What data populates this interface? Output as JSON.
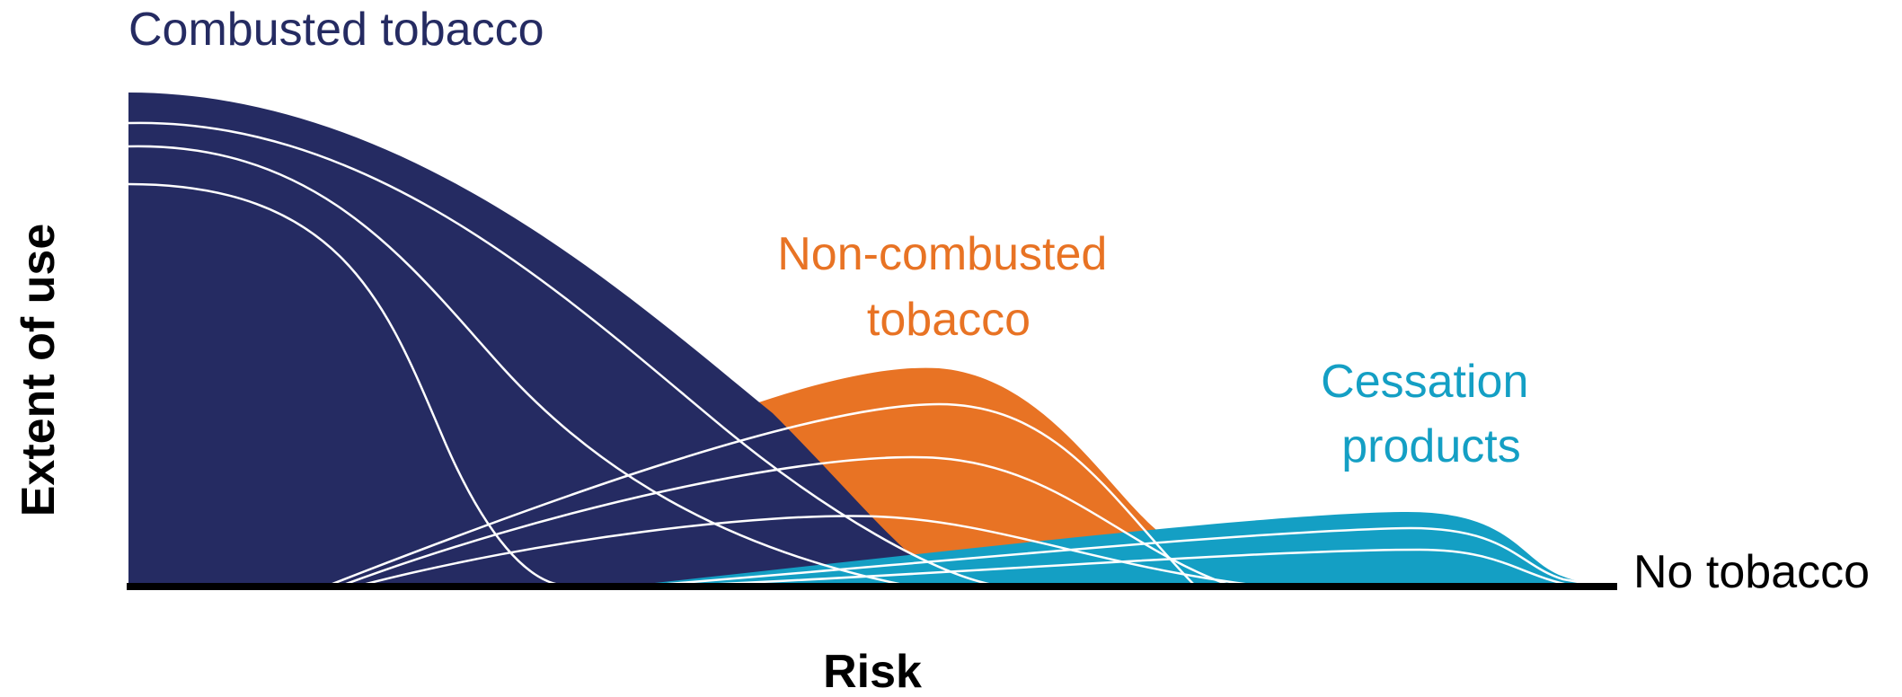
{
  "labels": {
    "combusted": "Combusted tobacco",
    "non_combusted_line1": "Non-combusted",
    "non_combusted_line2": "tobacco",
    "cessation_line1": "Cessation",
    "cessation_line2": "products",
    "no_tobacco": "No tobacco",
    "y_axis": "Extent of use",
    "x_axis": "Risk"
  },
  "colors": {
    "combusted": "#252b62",
    "non_combusted": "#e87324",
    "cessation": "#149fc4",
    "contour": "#ffffff",
    "axis": "#000000",
    "no_tobacco_text": "#000000"
  }
}
